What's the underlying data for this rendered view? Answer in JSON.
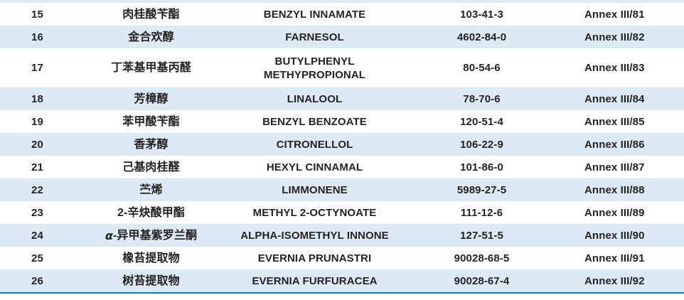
{
  "table": {
    "description_columns": [
      "serial_number",
      "chinese_name",
      "inci_name",
      "cas_number",
      "annex_reference"
    ],
    "rows": [
      {
        "num": "15",
        "cn": "肉桂酸苄酯",
        "en": "BENZYL INNAMATE",
        "cas": "103-41-3",
        "annex": "Annex III/81"
      },
      {
        "num": "16",
        "cn": "金合欢醇",
        "en": "FARNESOL",
        "cas": "4602-84-0",
        "annex": "Annex III/82"
      },
      {
        "num": "17",
        "cn": "丁苯基甲基丙醛",
        "en": "BUTYLPHENYL\nMETHYPROPIONAL",
        "cas": "80-54-6",
        "annex": "Annex III/83",
        "tall": true
      },
      {
        "num": "18",
        "cn": "芳樟醇",
        "en": "LINALOOL",
        "cas": "78-70-6",
        "annex": "Annex III/84"
      },
      {
        "num": "19",
        "cn": "苯甲酸苄酯",
        "en": "BENZYL BENZOATE",
        "cas": "120-51-4",
        "annex": "Annex III/85"
      },
      {
        "num": "20",
        "cn": "香茅醇",
        "en": "CITRONELLOL",
        "cas": "106-22-9",
        "annex": "Annex III/86"
      },
      {
        "num": "21",
        "cn": "己基肉桂醛",
        "en": "HEXYL CINNAMAL",
        "cas": "101-86-0",
        "annex": "Annex III/87"
      },
      {
        "num": "22",
        "cn": "苎烯",
        "en": "LIMMONENE",
        "cas": "5989-27-5",
        "annex": "Annex III/88"
      },
      {
        "num": "23",
        "cn": "2-辛炔酸甲酯",
        "en": "METHYL 2-OCTYNOATE",
        "cas": "111-12-6",
        "annex": "Annex III/89"
      },
      {
        "num": "24",
        "cn_parts": [
          {
            "t": "α",
            "italic": true
          },
          {
            "t": "-异甲基紫罗兰酮"
          }
        ],
        "en": "ALPHA-ISOMETHYL INNONE",
        "cas": "127-51-5",
        "annex": "Annex III/90"
      },
      {
        "num": "25",
        "cn": "橡苔提取物",
        "en": "EVERNIA PRUNASTRI",
        "cas": "90028-68-5",
        "annex": "Annex III/91"
      },
      {
        "num": "26",
        "cn": "树苔提取物",
        "en": "EVERNIA FURFURACEA",
        "cas": "90028-67-4",
        "annex": "Annex III/92"
      }
    ]
  },
  "colors": {
    "row_shade": "#dde9f4",
    "bottom_rule": "#1a78b8",
    "text": "#232323"
  }
}
